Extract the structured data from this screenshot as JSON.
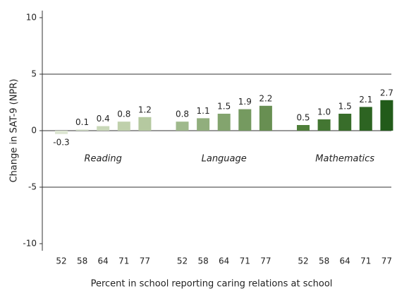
{
  "chart_data": {
    "type": "bar",
    "ylabel": "Change in SAT-9 (NPR)",
    "xlabel": "Percent in school reporting caring relations at school",
    "categories": [
      "52",
      "58",
      "64",
      "71",
      "77"
    ],
    "series": [
      {
        "name": "Reading",
        "colors": [
          "#dde6d3",
          "#d3dfc6",
          "#c9d8b9",
          "#bfd0ab",
          "#b5c9a0"
        ],
        "values": [
          -0.3,
          0.1,
          0.4,
          0.8,
          1.2
        ],
        "value_labels": [
          "-0.3",
          "0.1",
          "0.4",
          "0.8",
          "1.2"
        ]
      },
      {
        "name": "Language",
        "colors": [
          "#9fb98c",
          "#91ae7d",
          "#83a46e",
          "#759a60",
          "#688f52"
        ],
        "values": [
          0.8,
          1.1,
          1.5,
          1.9,
          2.2
        ],
        "value_labels": [
          "0.8",
          "1.1",
          "1.5",
          "1.9",
          "2.2"
        ]
      },
      {
        "name": "Mathematics",
        "colors": [
          "#4f7f3a",
          "#437632",
          "#386d2a",
          "#2d6422",
          "#225b1a"
        ],
        "values": [
          0.5,
          1.0,
          1.5,
          2.1,
          2.7
        ],
        "value_labels": [
          "0.5",
          "1.0",
          "1.5",
          "2.1",
          "2.7"
        ]
      }
    ],
    "ylim": [
      -10,
      10
    ],
    "yticks": [
      -10,
      -5,
      0,
      5,
      10
    ],
    "grid": true
  }
}
